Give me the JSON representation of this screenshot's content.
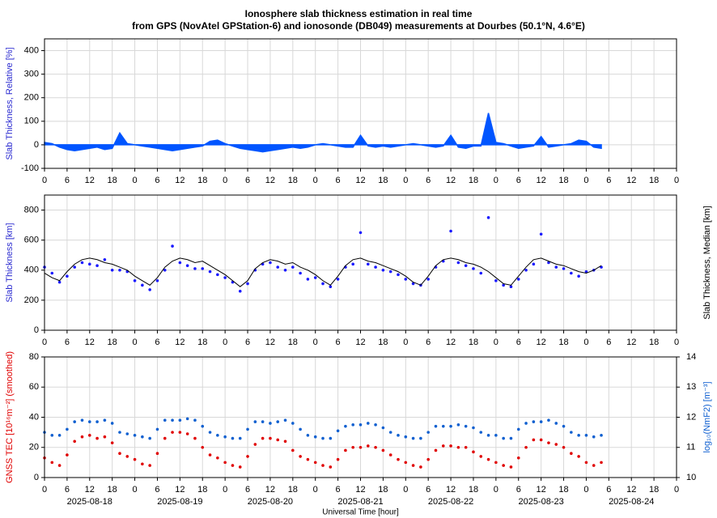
{
  "chart_data": [
    {
      "type": "area",
      "title": "Ionosphere slab thickness estimation in real time",
      "subtitle": "from GPS (NovAtel GPStation-6) and ionosonde (DB049) measurements at Dourbes (50.1°N, 4.6°E)",
      "ylabel": "Slab Thickness, Relative [%]",
      "ylabel_color": "#2a2ad0",
      "xlim": [
        0,
        168
      ],
      "ylim": [
        -100,
        450
      ],
      "yticks": [
        -100,
        0,
        100,
        200,
        300,
        400
      ],
      "grid": true,
      "xticks": [
        0,
        6,
        12,
        18,
        {
          "value": 24,
          "label": "0"
        },
        {
          "value": 30,
          "label": "6"
        },
        {
          "value": 36,
          "label": "12"
        },
        {
          "value": 42,
          "label": "18"
        },
        {
          "value": 48,
          "label": "0"
        },
        {
          "value": 54,
          "label": "6"
        },
        {
          "value": 60,
          "label": "12"
        },
        {
          "value": 66,
          "label": "18"
        },
        {
          "value": 72,
          "label": "0"
        },
        {
          "value": 78,
          "label": "6"
        },
        {
          "value": 84,
          "label": "12"
        },
        {
          "value": 90,
          "label": "18"
        },
        {
          "value": 96,
          "label": "0"
        },
        {
          "value": 102,
          "label": "6"
        },
        {
          "value": 108,
          "label": "12"
        },
        {
          "value": 114,
          "label": "18"
        },
        {
          "value": 120,
          "label": "0"
        },
        {
          "value": 126,
          "label": "6"
        },
        {
          "value": 132,
          "label": "12"
        },
        {
          "value": 138,
          "label": "18"
        },
        {
          "value": 144,
          "label": "0"
        },
        {
          "value": 150,
          "label": "6"
        },
        {
          "value": 156,
          "label": "12"
        },
        {
          "value": 162,
          "label": "18"
        },
        {
          "value": 168,
          "label": "0"
        }
      ],
      "x": [
        0,
        2,
        4,
        6,
        8,
        10,
        12,
        14,
        16,
        18,
        20,
        22,
        24,
        26,
        28,
        30,
        32,
        34,
        36,
        38,
        40,
        42,
        44,
        46,
        48,
        50,
        52,
        54,
        56,
        58,
        60,
        62,
        64,
        66,
        68,
        70,
        72,
        74,
        76,
        78,
        80,
        82,
        84,
        86,
        88,
        90,
        92,
        94,
        96,
        98,
        100,
        102,
        104,
        106,
        108,
        110,
        112,
        114,
        116,
        118,
        120,
        122,
        124,
        126,
        128,
        130,
        132,
        134,
        136,
        138,
        140,
        142,
        144,
        146,
        148
      ],
      "series": [
        {
          "color": "#0055ff",
          "values": [
            10,
            5,
            -10,
            -20,
            -25,
            -20,
            -15,
            -10,
            -20,
            -15,
            50,
            5,
            0,
            -5,
            -10,
            -15,
            -20,
            -25,
            -20,
            -15,
            -10,
            -5,
            15,
            20,
            5,
            -5,
            -15,
            -20,
            -25,
            -30,
            -25,
            -20,
            -15,
            -10,
            -15,
            -10,
            0,
            5,
            0,
            -5,
            -10,
            -10,
            40,
            -5,
            -10,
            -5,
            -10,
            -5,
            0,
            5,
            0,
            -5,
            -10,
            -5,
            40,
            -10,
            -15,
            -5,
            -5,
            135,
            10,
            5,
            -5,
            -15,
            -10,
            -5,
            35,
            -10,
            -5,
            0,
            5,
            20,
            15,
            -10,
            -15
          ]
        }
      ]
    },
    {
      "type": "scatter",
      "ylabel": "Slab Thickness [km]",
      "ylabel_color": "#2a2ad0",
      "y2label": "Slab Thickness, Median [km]",
      "y2label_color": "#000000",
      "xlim": [
        0,
        168
      ],
      "ylim": [
        0,
        900
      ],
      "yticks": [
        0,
        200,
        400,
        600,
        800
      ],
      "grid": true,
      "xticks": [
        0,
        6,
        12,
        18,
        {
          "value": 24,
          "label": "0"
        },
        {
          "value": 30,
          "label": "6"
        },
        {
          "value": 36,
          "label": "12"
        },
        {
          "value": 42,
          "label": "18"
        },
        {
          "value": 48,
          "label": "0"
        },
        {
          "value": 54,
          "label": "6"
        },
        {
          "value": 60,
          "label": "12"
        },
        {
          "value": 66,
          "label": "18"
        },
        {
          "value": 72,
          "label": "0"
        },
        {
          "value": 78,
          "label": "6"
        },
        {
          "value": 84,
          "label": "12"
        },
        {
          "value": 90,
          "label": "18"
        },
        {
          "value": 96,
          "label": "0"
        },
        {
          "value": 102,
          "label": "6"
        },
        {
          "value": 108,
          "label": "12"
        },
        {
          "value": 114,
          "label": "18"
        },
        {
          "value": 120,
          "label": "0"
        },
        {
          "value": 126,
          "label": "6"
        },
        {
          "value": 132,
          "label": "12"
        },
        {
          "value": 138,
          "label": "18"
        },
        {
          "value": 144,
          "label": "0"
        },
        {
          "value": 150,
          "label": "6"
        },
        {
          "value": 156,
          "label": "12"
        },
        {
          "value": 162,
          "label": "18"
        },
        {
          "value": 168,
          "label": "0"
        }
      ],
      "x": [
        0,
        2,
        4,
        6,
        8,
        10,
        12,
        14,
        16,
        18,
        20,
        22,
        24,
        26,
        28,
        30,
        32,
        34,
        36,
        38,
        40,
        42,
        44,
        46,
        48,
        50,
        52,
        54,
        56,
        58,
        60,
        62,
        64,
        66,
        68,
        70,
        72,
        74,
        76,
        78,
        80,
        82,
        84,
        86,
        88,
        90,
        92,
        94,
        96,
        98,
        100,
        102,
        104,
        106,
        108,
        110,
        112,
        114,
        116,
        118,
        120,
        122,
        124,
        126,
        128,
        130,
        132,
        134,
        136,
        138,
        140,
        142,
        144,
        146,
        148
      ],
      "series": [
        {
          "kind": "markers",
          "color": "#1a1aff",
          "values": [
            420,
            380,
            320,
            360,
            420,
            450,
            440,
            430,
            470,
            400,
            400,
            390,
            330,
            300,
            270,
            330,
            400,
            560,
            450,
            430,
            410,
            410,
            390,
            370,
            350,
            320,
            260,
            310,
            400,
            440,
            450,
            420,
            400,
            420,
            380,
            340,
            350,
            310,
            290,
            340,
            420,
            440,
            650,
            440,
            420,
            400,
            390,
            370,
            340,
            310,
            300,
            340,
            420,
            460,
            660,
            450,
            430,
            410,
            380,
            750,
            330,
            300,
            290,
            340,
            400,
            440,
            640,
            450,
            420,
            410,
            380,
            360,
            390,
            400,
            420
          ]
        },
        {
          "kind": "line",
          "color": "#000000",
          "values": [
            380,
            350,
            330,
            390,
            440,
            470,
            480,
            470,
            450,
            440,
            420,
            400,
            360,
            330,
            300,
            350,
            420,
            460,
            480,
            470,
            450,
            460,
            430,
            400,
            370,
            330,
            290,
            330,
            410,
            450,
            470,
            460,
            440,
            450,
            420,
            400,
            370,
            330,
            300,
            360,
            430,
            470,
            480,
            460,
            450,
            430,
            410,
            390,
            360,
            320,
            300,
            360,
            430,
            470,
            480,
            470,
            450,
            440,
            420,
            390,
            350,
            310,
            300,
            360,
            420,
            470,
            480,
            460,
            440,
            430,
            410,
            390,
            380,
            400,
            430
          ]
        }
      ]
    },
    {
      "type": "scatter",
      "ylabel": "GNSS TEC [10¹⁶m⁻²] (smoothed)",
      "ylabel_color": "#e00000",
      "y2label": "log₁₀(NmF2) [m⁻³]",
      "y2label_color": "#1060d0",
      "xlabel": "Universal Time [hour]",
      "xlim": [
        0,
        168
      ],
      "ylim": [
        0,
        80
      ],
      "yticks": [
        0,
        20,
        40,
        60,
        80
      ],
      "y2lim": [
        10,
        14
      ],
      "y2ticks": [
        10,
        11,
        12,
        13,
        14
      ],
      "grid": true,
      "xticks": [
        0,
        6,
        12,
        18,
        {
          "value": 24,
          "label": "0"
        },
        {
          "value": 30,
          "label": "6"
        },
        {
          "value": 36,
          "label": "12"
        },
        {
          "value": 42,
          "label": "18"
        },
        {
          "value": 48,
          "label": "0"
        },
        {
          "value": 54,
          "label": "6"
        },
        {
          "value": 60,
          "label": "12"
        },
        {
          "value": 66,
          "label": "18"
        },
        {
          "value": 72,
          "label": "0"
        },
        {
          "value": 78,
          "label": "6"
        },
        {
          "value": 84,
          "label": "12"
        },
        {
          "value": 90,
          "label": "18"
        },
        {
          "value": 96,
          "label": "0"
        },
        {
          "value": 102,
          "label": "6"
        },
        {
          "value": 108,
          "label": "12"
        },
        {
          "value": 114,
          "label": "18"
        },
        {
          "value": 120,
          "label": "0"
        },
        {
          "value": 126,
          "label": "6"
        },
        {
          "value": 132,
          "label": "12"
        },
        {
          "value": 138,
          "label": "18"
        },
        {
          "value": 144,
          "label": "0"
        },
        {
          "value": 150,
          "label": "6"
        },
        {
          "value": 156,
          "label": "12"
        },
        {
          "value": 162,
          "label": "18"
        },
        {
          "value": 168,
          "label": "0"
        }
      ],
      "date_labels": [
        {
          "value": 12,
          "label": "2025-08-18"
        },
        {
          "value": 36,
          "label": "2025-08-19"
        },
        {
          "value": 60,
          "label": "2025-08-20"
        },
        {
          "value": 84,
          "label": "2025-08-21"
        },
        {
          "value": 108,
          "label": "2025-08-22"
        },
        {
          "value": 132,
          "label": "2025-08-23"
        },
        {
          "value": 156,
          "label": "2025-08-24"
        }
      ],
      "x": [
        0,
        2,
        4,
        6,
        8,
        10,
        12,
        14,
        16,
        18,
        20,
        22,
        24,
        26,
        28,
        30,
        32,
        34,
        36,
        38,
        40,
        42,
        44,
        46,
        48,
        50,
        52,
        54,
        56,
        58,
        60,
        62,
        64,
        66,
        68,
        70,
        72,
        74,
        76,
        78,
        80,
        82,
        84,
        86,
        88,
        90,
        92,
        94,
        96,
        98,
        100,
        102,
        104,
        106,
        108,
        110,
        112,
        114,
        116,
        118,
        120,
        122,
        124,
        126,
        128,
        130,
        132,
        134,
        136,
        138,
        140,
        142,
        144,
        146,
        148
      ],
      "series": [
        {
          "kind": "markers",
          "color": "#e00000",
          "values": [
            13,
            10,
            8,
            15,
            24,
            27,
            28,
            26,
            27,
            23,
            16,
            14,
            12,
            9,
            8,
            16,
            26,
            30,
            30,
            29,
            26,
            20,
            15,
            13,
            10,
            8,
            7,
            14,
            22,
            26,
            26,
            25,
            24,
            18,
            14,
            12,
            10,
            8,
            7,
            12,
            18,
            20,
            20,
            21,
            20,
            18,
            15,
            12,
            10,
            8,
            7,
            12,
            18,
            21,
            21,
            20,
            20,
            17,
            14,
            12,
            10,
            8,
            7,
            13,
            20,
            25,
            25,
            23,
            22,
            20,
            16,
            14,
            10,
            8,
            10
          ]
        },
        {
          "kind": "markers",
          "axis": "y2",
          "color": "#1060d0",
          "values": [
            11.5,
            11.4,
            11.4,
            11.6,
            11.85,
            11.9,
            11.85,
            11.85,
            11.9,
            11.8,
            11.5,
            11.45,
            11.4,
            11.35,
            11.3,
            11.6,
            11.9,
            11.9,
            11.9,
            11.95,
            11.9,
            11.7,
            11.5,
            11.4,
            11.35,
            11.3,
            11.3,
            11.6,
            11.85,
            11.85,
            11.8,
            11.85,
            11.9,
            11.8,
            11.6,
            11.4,
            11.35,
            11.3,
            11.3,
            11.55,
            11.7,
            11.75,
            11.75,
            11.8,
            11.75,
            11.65,
            11.5,
            11.4,
            11.35,
            11.3,
            11.3,
            11.5,
            11.7,
            11.7,
            11.7,
            11.75,
            11.7,
            11.65,
            11.5,
            11.4,
            11.4,
            11.3,
            11.3,
            11.6,
            11.8,
            11.85,
            11.85,
            11.9,
            11.8,
            11.7,
            11.5,
            11.4,
            11.4,
            11.35,
            11.4
          ]
        }
      ]
    }
  ]
}
